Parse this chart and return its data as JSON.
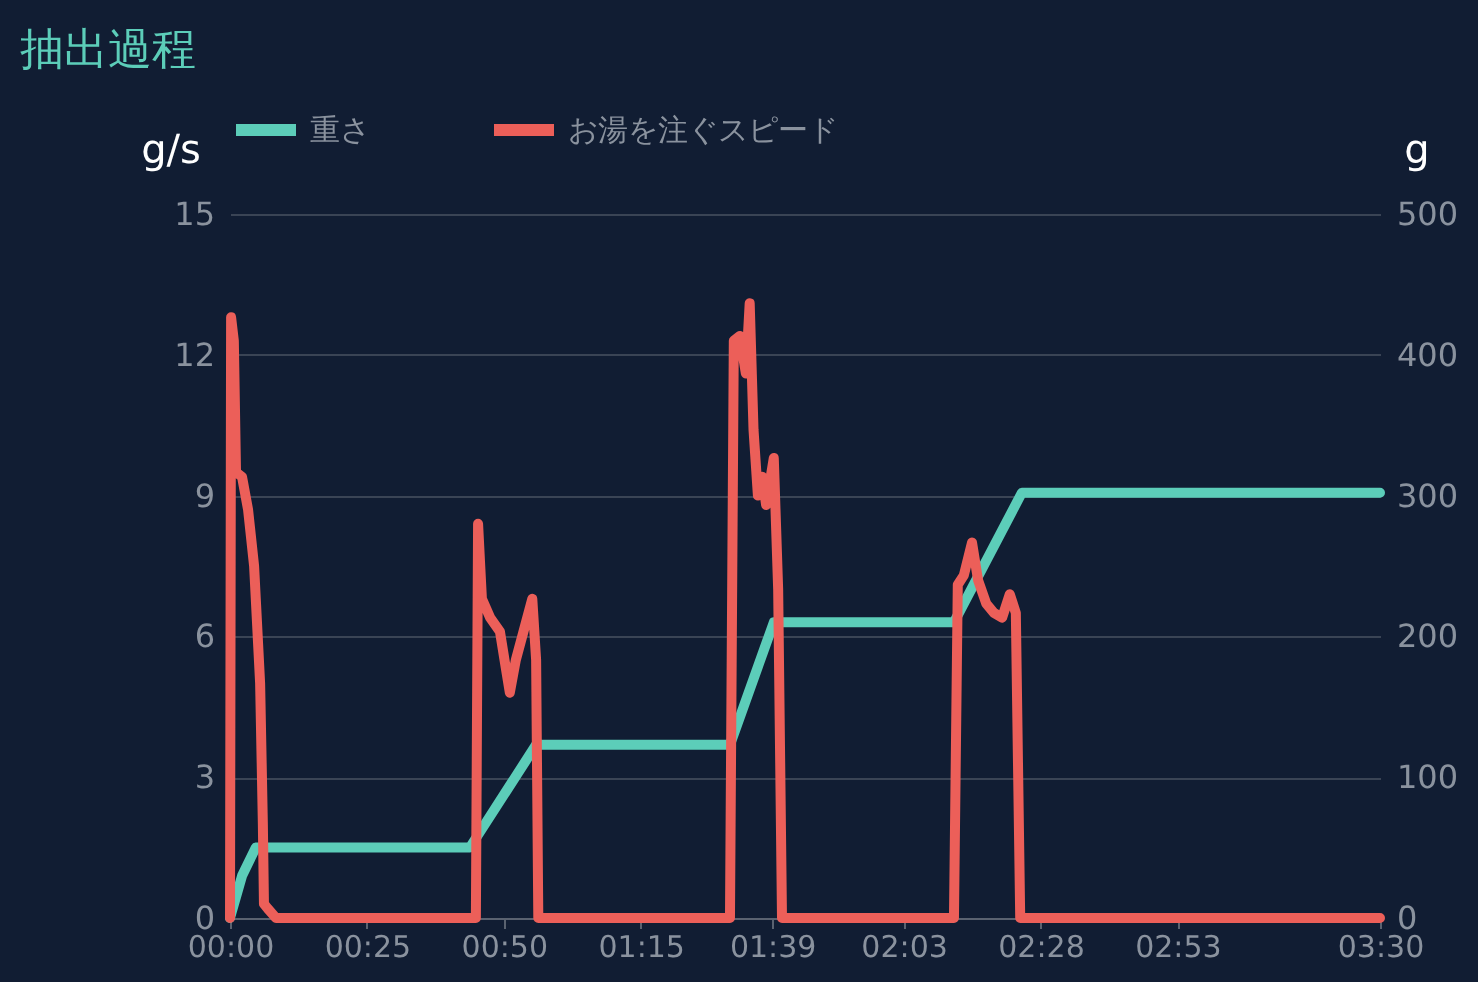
{
  "chart_data": {
    "type": "line",
    "title": "抽出過程",
    "ylabel": "g/s",
    "y2label": "g",
    "xlim": [
      0,
      210
    ],
    "xticks": [
      {
        "value": 0,
        "label": "00:00"
      },
      {
        "value": 25,
        "label": "00:25"
      },
      {
        "value": 50,
        "label": "00:50"
      },
      {
        "value": 75,
        "label": "01:15"
      },
      {
        "value": 99,
        "label": "01:39"
      },
      {
        "value": 123,
        "label": "02:03"
      },
      {
        "value": 148,
        "label": "02:28"
      },
      {
        "value": 173,
        "label": "02:53"
      },
      {
        "value": 210,
        "label": "03:30"
      }
    ],
    "ylim": [
      0,
      15
    ],
    "yticks": [
      0,
      3,
      6,
      9,
      12,
      15
    ],
    "y2lim": [
      0,
      500
    ],
    "y2ticks": [
      0,
      100,
      200,
      300,
      400,
      500
    ],
    "grid": "y",
    "legend": "top",
    "series": [
      {
        "name": "重さ",
        "color": "#5ccdb9",
        "axis": "y2",
        "x": [
          0,
          2.2,
          4.7,
          43.8,
          55.9,
          91.3,
          99.3,
          132.2,
          144.6,
          210
        ],
        "values": [
          0,
          30,
          50,
          50,
          123,
          123,
          210,
          210,
          302,
          302
        ]
      },
      {
        "name": "お湯を注ぐスピード",
        "color": "#ec5f59",
        "axis": "y",
        "x": [
          0,
          0.2,
          0.7,
          1.1,
          2.2,
          3.3,
          4.4,
          5.5,
          6.0,
          6.2,
          6.9,
          8.4,
          44.9,
          45.3,
          46.0,
          47.5,
          49.3,
          50.4,
          51.1,
          52.2,
          55.2,
          55.9,
          56.3,
          91.3,
          92.0,
          93.1,
          94.2,
          94.9,
          95.6,
          96.4,
          97.2,
          97.9,
          99.3,
          100.1,
          100.8,
          132.2,
          132.9,
          134.0,
          135.5,
          136.6,
          138.1,
          139.5,
          141.0,
          142.4,
          143.5,
          144.3,
          210
        ],
        "values": [
          0,
          12.8,
          12.3,
          9.5,
          9.4,
          8.7,
          7.5,
          5,
          2,
          0.3,
          0.2,
          0,
          0,
          8.4,
          6.8,
          6.4,
          6.1,
          5.3,
          4.8,
          5.5,
          6.8,
          5.5,
          0,
          0,
          12.3,
          12.4,
          11.6,
          13.1,
          10.4,
          9.0,
          9.4,
          8.8,
          9.8,
          7,
          0,
          0,
          7.1,
          7.3,
          8.0,
          7.2,
          6.7,
          6.5,
          6.4,
          6.9,
          6.5,
          0,
          0
        ]
      }
    ]
  }
}
